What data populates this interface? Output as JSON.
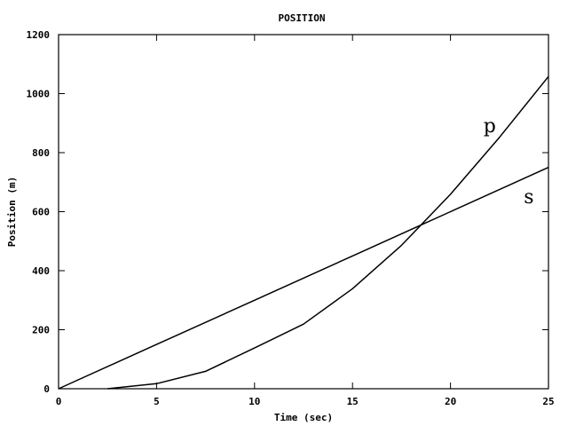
{
  "chart_data": {
    "type": "line",
    "title": "POSITION",
    "xlabel": "Time (sec)",
    "ylabel": "Position (m)",
    "xlim": [
      0,
      25
    ],
    "ylim": [
      0,
      1200
    ],
    "x_ticks": [
      0,
      5,
      10,
      15,
      20,
      25
    ],
    "y_ticks": [
      0,
      200,
      400,
      600,
      800,
      1000,
      1200
    ],
    "grid": false,
    "legend": "none",
    "line_color": "#000000",
    "series": [
      {
        "name": "s",
        "x": [
          0,
          5,
          10,
          15,
          20,
          25
        ],
        "y": [
          0,
          150,
          300,
          450,
          600,
          750
        ]
      },
      {
        "name": "p",
        "x": [
          2.5,
          5,
          7.5,
          10,
          12.5,
          15,
          17.5,
          20,
          22.5,
          25
        ],
        "y": [
          0,
          17,
          59,
          138,
          219,
          339,
          486,
          659,
          852,
          1058
        ]
      }
    ],
    "annotations": [
      {
        "text": "p",
        "x": 22,
        "y": 890
      },
      {
        "text": "s",
        "x": 24,
        "y": 650
      }
    ]
  }
}
